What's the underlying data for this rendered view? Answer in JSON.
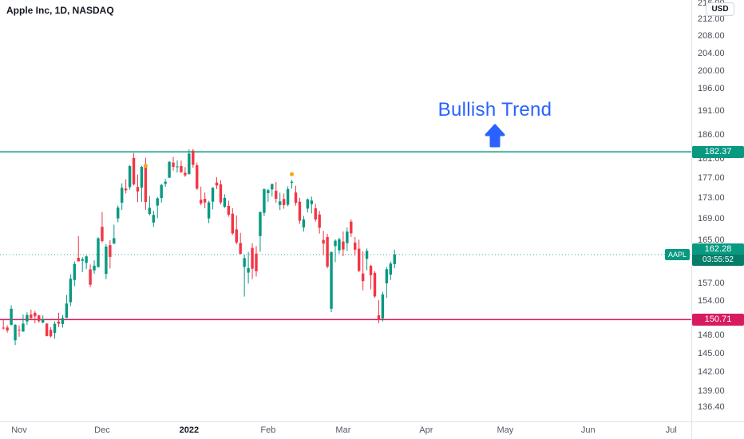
{
  "header": {
    "symbol_title": "Apple Inc, 1D, NASDAQ"
  },
  "price_axis": {
    "currency_button": "USD",
    "ticks": [
      "216.00",
      "212.00",
      "208.00",
      "204.00",
      "200.00",
      "196.00",
      "191.00",
      "186.00",
      "181.00",
      "177.00",
      "173.00",
      "169.00",
      "165.00",
      "157.00",
      "154.00",
      "148.00",
      "145.00",
      "142.00",
      "139.00",
      "136.40"
    ]
  },
  "time_axis": {
    "labels": [
      {
        "text": "Nov",
        "index": 4,
        "bold": false
      },
      {
        "text": "Dec",
        "index": 25,
        "bold": false
      },
      {
        "text": "2022",
        "index": 47,
        "bold": true
      },
      {
        "text": "Feb",
        "index": 67,
        "bold": false
      },
      {
        "text": "Mar",
        "index": 86,
        "bold": false
      },
      {
        "text": "Apr",
        "index": 107,
        "bold": false
      },
      {
        "text": "May",
        "index": 127,
        "bold": false
      },
      {
        "text": "Jun",
        "index": 148,
        "bold": false
      },
      {
        "text": "Jul",
        "index": 169,
        "bold": false
      }
    ]
  },
  "chart_data": {
    "type": "candlestick",
    "title": "Apple Inc, 1D, NASDAQ",
    "symbol": "AAPL",
    "exchange": "NASDAQ",
    "interval": "1D",
    "currency": "USD",
    "scale": "log",
    "grid": false,
    "ylim": [
      134.23,
      216.74
    ],
    "up_color": "#089981",
    "down_color": "#f23645",
    "annotation": {
      "text": "Bullish Trend",
      "color": "#2962ff"
    },
    "levels": [
      {
        "name": "resistance",
        "value": 182.37,
        "label": "182.37",
        "color": "#089981"
      },
      {
        "name": "support",
        "value": 150.71,
        "label": "150.71",
        "color": "#d81b60"
      }
    ],
    "last_price": {
      "value": 162.28,
      "label": "162.28",
      "countdown": "03:55:52",
      "symbol_flag": "AAPL",
      "color": "#089981"
    },
    "markers": [
      {
        "index": 36,
        "price": 179.5,
        "color": "#f5a623"
      },
      {
        "index": 73,
        "price": 177.8,
        "color": "#f5a623"
      }
    ],
    "columns": [
      "date",
      "open",
      "high",
      "low",
      "close"
    ],
    "candles": [
      [
        "2021-10-26",
        149.33,
        150.84,
        149.01,
        149.32
      ],
      [
        "2021-10-27",
        149.36,
        149.73,
        148.49,
        148.85
      ],
      [
        "2021-10-28",
        149.82,
        153.17,
        149.72,
        152.57
      ],
      [
        "2021-10-29",
        147.22,
        149.94,
        146.41,
        149.8
      ],
      [
        "2021-11-01",
        148.99,
        149.7,
        147.8,
        148.96
      ],
      [
        "2021-11-02",
        148.66,
        151.57,
        148.65,
        150.02
      ],
      [
        "2021-11-03",
        150.39,
        151.97,
        149.82,
        151.49
      ],
      [
        "2021-11-04",
        151.58,
        152.43,
        150.64,
        150.96
      ],
      [
        "2021-11-05",
        151.89,
        152.2,
        150.06,
        151.28
      ],
      [
        "2021-11-08",
        151.41,
        151.57,
        150.16,
        150.44
      ],
      [
        "2021-11-09",
        150.2,
        151.43,
        150.06,
        150.81
      ],
      [
        "2021-11-10",
        150.02,
        150.13,
        147.85,
        147.92
      ],
      [
        "2021-11-11",
        148.96,
        149.43,
        147.68,
        147.87
      ],
      [
        "2021-11-12",
        148.43,
        150.4,
        147.48,
        149.99
      ],
      [
        "2021-11-15",
        150.37,
        151.88,
        149.43,
        150.0
      ],
      [
        "2021-11-16",
        149.94,
        151.49,
        149.34,
        151.0
      ],
      [
        "2021-11-17",
        151.0,
        155.0,
        150.99,
        153.49
      ],
      [
        "2021-11-18",
        153.71,
        158.67,
        153.05,
        157.87
      ],
      [
        "2021-11-19",
        157.65,
        161.02,
        156.53,
        160.55
      ],
      [
        "2021-11-22",
        161.68,
        165.7,
        161.0,
        161.02
      ],
      [
        "2021-11-23",
        161.12,
        161.8,
        159.06,
        161.41
      ],
      [
        "2021-11-24",
        160.75,
        162.14,
        159.64,
        161.94
      ],
      [
        "2021-11-26",
        159.57,
        160.45,
        156.36,
        156.81
      ],
      [
        "2021-11-29",
        159.37,
        161.19,
        158.79,
        160.24
      ],
      [
        "2021-11-30",
        159.99,
        165.52,
        159.92,
        165.3
      ],
      [
        "2021-12-01",
        167.48,
        170.3,
        164.53,
        164.77
      ],
      [
        "2021-12-02",
        158.74,
        164.2,
        157.8,
        163.76
      ],
      [
        "2021-12-03",
        164.02,
        164.96,
        159.72,
        161.84
      ],
      [
        "2021-12-06",
        164.29,
        167.88,
        164.28,
        165.32
      ],
      [
        "2021-12-07",
        169.08,
        171.58,
        168.34,
        171.18
      ],
      [
        "2021-12-08",
        172.13,
        175.96,
        170.7,
        175.08
      ],
      [
        "2021-12-09",
        174.91,
        176.75,
        173.92,
        174.56
      ],
      [
        "2021-12-10",
        175.21,
        179.63,
        174.69,
        179.45
      ],
      [
        "2021-12-13",
        181.12,
        182.13,
        175.53,
        175.74
      ],
      [
        "2021-12-14",
        175.25,
        177.74,
        172.21,
        174.33
      ],
      [
        "2021-12-15",
        175.11,
        179.5,
        172.31,
        179.3
      ],
      [
        "2021-12-16",
        179.28,
        181.14,
        170.75,
        172.26
      ],
      [
        "2021-12-17",
        169.93,
        173.47,
        169.69,
        171.14
      ],
      [
        "2021-12-20",
        168.28,
        170.58,
        167.46,
        169.75
      ],
      [
        "2021-12-21",
        171.56,
        173.2,
        169.12,
        172.99
      ],
      [
        "2021-12-22",
        173.04,
        175.86,
        172.15,
        175.64
      ],
      [
        "2021-12-23",
        175.85,
        176.85,
        175.27,
        176.28
      ],
      [
        "2021-12-27",
        177.09,
        180.42,
        177.07,
        180.33
      ],
      [
        "2021-12-28",
        180.16,
        181.33,
        178.53,
        179.29
      ],
      [
        "2021-12-29",
        179.33,
        180.63,
        178.14,
        179.38
      ],
      [
        "2021-12-30",
        179.47,
        180.57,
        178.09,
        178.2
      ],
      [
        "2021-12-31",
        178.09,
        179.23,
        177.26,
        177.57
      ],
      [
        "2022-01-03",
        177.83,
        182.88,
        177.71,
        182.01
      ],
      [
        "2022-01-04",
        182.63,
        182.94,
        179.12,
        179.7
      ],
      [
        "2022-01-05",
        179.61,
        180.17,
        174.64,
        174.92
      ],
      [
        "2022-01-06",
        172.7,
        175.3,
        171.64,
        172.0
      ],
      [
        "2022-01-07",
        172.89,
        174.14,
        171.03,
        172.17
      ],
      [
        "2022-01-10",
        169.08,
        172.5,
        168.17,
        172.19
      ],
      [
        "2022-01-11",
        172.32,
        175.18,
        170.82,
        175.08
      ],
      [
        "2022-01-12",
        176.12,
        177.18,
        174.82,
        175.53
      ],
      [
        "2022-01-13",
        175.78,
        176.62,
        171.79,
        172.19
      ],
      [
        "2022-01-14",
        171.34,
        173.78,
        171.09,
        173.07
      ],
      [
        "2022-01-18",
        171.51,
        172.54,
        169.41,
        169.8
      ],
      [
        "2022-01-19",
        170.0,
        171.08,
        165.94,
        166.23
      ],
      [
        "2022-01-20",
        166.98,
        169.68,
        164.18,
        164.51
      ],
      [
        "2022-01-21",
        164.42,
        166.33,
        162.3,
        162.41
      ],
      [
        "2022-01-24",
        160.02,
        162.3,
        154.7,
        161.62
      ],
      [
        "2022-01-25",
        158.98,
        162.76,
        157.02,
        159.78
      ],
      [
        "2022-01-26",
        163.5,
        164.39,
        157.82,
        159.69
      ],
      [
        "2022-01-27",
        162.45,
        163.84,
        158.28,
        159.22
      ],
      [
        "2022-01-28",
        165.71,
        170.35,
        162.8,
        170.33
      ],
      [
        "2022-01-31",
        170.16,
        175.0,
        169.51,
        174.78
      ],
      [
        "2022-02-01",
        174.01,
        174.84,
        172.31,
        174.61
      ],
      [
        "2022-02-02",
        174.75,
        175.88,
        173.33,
        175.84
      ],
      [
        "2022-02-03",
        174.48,
        176.24,
        172.12,
        172.9
      ],
      [
        "2022-02-04",
        171.68,
        174.1,
        170.68,
        172.39
      ],
      [
        "2022-02-07",
        172.86,
        173.95,
        170.95,
        171.66
      ],
      [
        "2022-02-08",
        171.73,
        175.35,
        171.43,
        174.83
      ],
      [
        "2022-02-09",
        176.05,
        176.65,
        174.9,
        176.28
      ],
      [
        "2022-02-10",
        174.14,
        175.48,
        171.55,
        172.12
      ],
      [
        "2022-02-11",
        172.33,
        173.08,
        168.04,
        168.64
      ],
      [
        "2022-02-14",
        167.37,
        169.58,
        166.56,
        168.88
      ],
      [
        "2022-02-15",
        170.97,
        172.95,
        170.25,
        172.79
      ],
      [
        "2022-02-16",
        171.85,
        173.34,
        170.05,
        172.55
      ],
      [
        "2022-02-17",
        171.03,
        171.91,
        168.47,
        168.88
      ],
      [
        "2022-02-18",
        169.82,
        170.54,
        166.19,
        167.3
      ],
      [
        "2022-02-22",
        164.98,
        166.69,
        162.15,
        164.32
      ],
      [
        "2022-02-23",
        165.54,
        166.15,
        159.75,
        160.07
      ],
      [
        "2022-02-24",
        152.58,
        162.85,
        152.0,
        162.74
      ],
      [
        "2022-02-25",
        163.84,
        165.12,
        160.87,
        164.85
      ],
      [
        "2022-02-28",
        163.06,
        165.42,
        162.43,
        165.12
      ],
      [
        "2022-03-01",
        164.7,
        166.6,
        161.97,
        163.2
      ],
      [
        "2022-03-02",
        164.39,
        167.36,
        162.95,
        166.56
      ],
      [
        "2022-03-03",
        168.47,
        168.91,
        165.55,
        166.23
      ],
      [
        "2022-03-04",
        164.49,
        165.55,
        162.1,
        163.17
      ],
      [
        "2022-03-07",
        163.36,
        165.02,
        159.04,
        159.3
      ],
      [
        "2022-03-08",
        158.82,
        162.88,
        155.8,
        157.44
      ],
      [
        "2022-03-09",
        161.48,
        163.41,
        159.41,
        162.95
      ],
      [
        "2022-03-10",
        160.2,
        160.39,
        155.98,
        158.52
      ],
      [
        "2022-03-11",
        158.93,
        159.28,
        154.5,
        154.73
      ],
      [
        "2022-03-14",
        151.45,
        154.12,
        150.1,
        150.62
      ],
      [
        "2022-03-15",
        150.9,
        155.57,
        150.38,
        155.09
      ],
      [
        "2022-03-16",
        157.05,
        160.0,
        154.46,
        159.59
      ],
      [
        "2022-03-17",
        158.61,
        161.0,
        157.63,
        160.62
      ],
      [
        "2022-03-18",
        160.51,
        163.17,
        159.76,
        162.28
      ]
    ]
  }
}
